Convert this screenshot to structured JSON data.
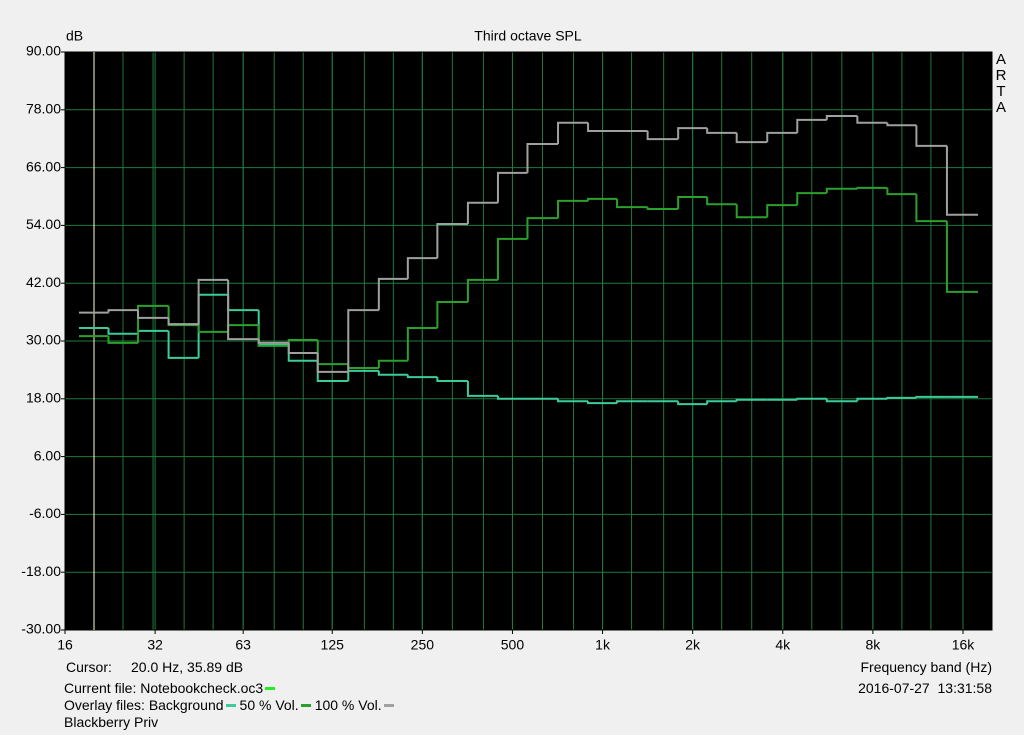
{
  "chart_data": {
    "type": "step",
    "title": "Third octave SPL",
    "ylabel": "dB",
    "xlabel": "Frequency band (Hz)",
    "log_x": true,
    "grid": true,
    "plot_background": "#000000",
    "grid_color": "#1f7a3c",
    "x": [
      20,
      25,
      31.5,
      40,
      50,
      63,
      80,
      100,
      125,
      160,
      200,
      250,
      315,
      400,
      500,
      630,
      800,
      1000,
      1250,
      1600,
      2000,
      2500,
      3150,
      4000,
      5000,
      6300,
      8000,
      10000,
      12500,
      16000
    ],
    "xlim": [
      16,
      20000
    ],
    "xticks": [
      16,
      32,
      63,
      125,
      250,
      500,
      {
        "value": 1000,
        "label": "1k"
      },
      {
        "value": 2000,
        "label": "2k"
      },
      {
        "value": 4000,
        "label": "4k"
      },
      {
        "value": 8000,
        "label": "8k"
      },
      {
        "value": 16000,
        "label": "16k"
      }
    ],
    "ylim": [
      -30,
      90
    ],
    "yticks": [
      {
        "value": 90,
        "label": "90.00"
      },
      {
        "value": 78,
        "label": "78.00"
      },
      {
        "value": 66,
        "label": "66.00"
      },
      {
        "value": 54,
        "label": "54.00"
      },
      {
        "value": 42,
        "label": "42.00"
      },
      {
        "value": 30,
        "label": "30.00"
      },
      {
        "value": 18,
        "label": "18.00"
      },
      {
        "value": 6,
        "label": "6.00"
      },
      {
        "value": -6,
        "label": "-6.00"
      },
      {
        "value": -18,
        "label": "-18.00"
      },
      {
        "value": -30,
        "label": "-30.00"
      }
    ],
    "series": [
      {
        "name": "Background",
        "color": "#3ccc9c",
        "values": [
          32.7,
          31.5,
          32.1,
          26.5,
          39.6,
          36.4,
          29.2,
          25.9,
          21.7,
          23.8,
          23.0,
          22.5,
          21.7,
          18.6,
          18.0,
          18.0,
          17.5,
          17.1,
          17.5,
          17.5,
          16.9,
          17.5,
          17.8,
          17.8,
          18.0,
          17.5,
          18.0,
          18.2,
          18.4,
          18.4
        ]
      },
      {
        "name": "50 % Vol.",
        "color": "#2ca02c",
        "values": [
          31.0,
          29.6,
          37.3,
          33.3,
          31.9,
          33.3,
          29.0,
          30.2,
          25.2,
          24.4,
          25.9,
          32.7,
          38.1,
          42.7,
          51.2,
          55.5,
          59.1,
          59.5,
          57.8,
          57.4,
          59.9,
          58.4,
          55.7,
          58.2,
          60.7,
          61.6,
          61.8,
          60.5,
          54.9,
          40.2
        ]
      },
      {
        "name": "100 % Vol.",
        "color": "#a0a0a0",
        "values": [
          35.9,
          36.4,
          34.8,
          33.5,
          42.7,
          30.4,
          29.6,
          27.5,
          23.6,
          36.4,
          42.9,
          47.2,
          54.3,
          58.7,
          64.9,
          70.9,
          75.3,
          73.6,
          73.6,
          71.9,
          74.2,
          73.2,
          71.3,
          73.2,
          75.9,
          76.7,
          75.3,
          74.8,
          70.5,
          56.2
        ]
      }
    ]
  },
  "info": {
    "brand": "ARTA",
    "cursor_label": "Cursor:",
    "cursor_text": "20.0 Hz, 35.89 dB",
    "cursor_x": 20,
    "current_file": "Current file: Notebookcheck.oc3",
    "current_file_color": "#22ee22",
    "overlay_label": "Overlay files:",
    "timestamp": "2016-07-27  13:31:58",
    "device": "Blackberry Priv"
  }
}
